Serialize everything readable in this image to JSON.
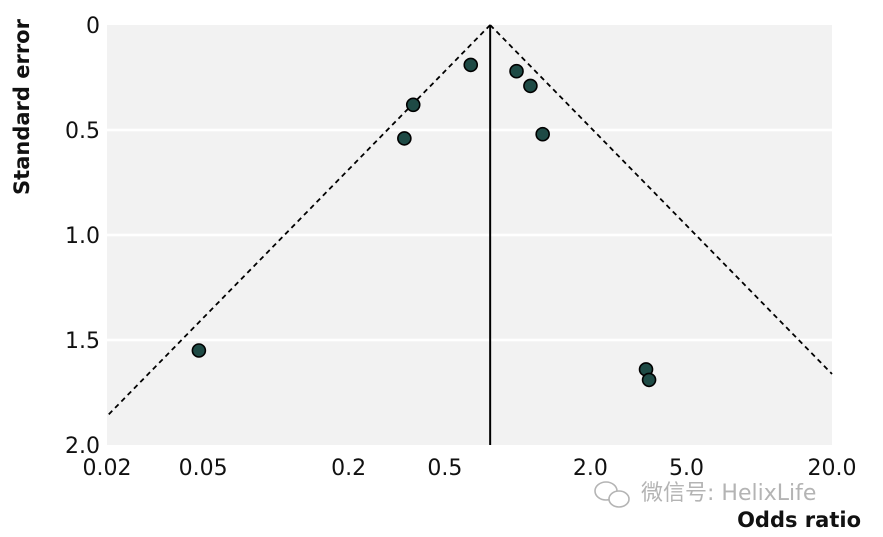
{
  "chart_data": {
    "type": "scatter",
    "title": "",
    "xlabel": "Odds ratio",
    "ylabel": "Standard error",
    "x_scale": "log",
    "y_inverted": true,
    "xlim": [
      0.02,
      20.0
    ],
    "ylim": [
      0,
      2.0
    ],
    "x_ticks": [
      {
        "value": 0.02,
        "label": "0.02"
      },
      {
        "value": 0.05,
        "label": "0.05"
      },
      {
        "value": 0.2,
        "label": "0.2"
      },
      {
        "value": 0.5,
        "label": "0.5"
      },
      {
        "value": 2.0,
        "label": "2.0"
      },
      {
        "value": 5.0,
        "label": "5.0"
      },
      {
        "value": 20.0,
        "label": "20.0"
      }
    ],
    "y_ticks": [
      {
        "value": 0,
        "label": "0"
      },
      {
        "value": 0.5,
        "label": "0.5"
      },
      {
        "value": 1.0,
        "label": "1.0"
      },
      {
        "value": 1.5,
        "label": "1.5"
      },
      {
        "value": 2.0,
        "label": "2.0"
      }
    ],
    "grid": "horizontal",
    "pooled_estimate": 0.77,
    "funnel_limits": "pseudo 95% confidence limits (dashed)",
    "points": [
      {
        "x": 0.048,
        "y": 1.55
      },
      {
        "x": 0.34,
        "y": 0.54
      },
      {
        "x": 0.37,
        "y": 0.38
      },
      {
        "x": 0.64,
        "y": 0.19
      },
      {
        "x": 0.99,
        "y": 0.22
      },
      {
        "x": 1.13,
        "y": 0.29
      },
      {
        "x": 1.27,
        "y": 0.52
      },
      {
        "x": 3.4,
        "y": 1.64
      },
      {
        "x": 3.5,
        "y": 1.69
      }
    ]
  },
  "watermark": {
    "text": "微信号: HelixLife"
  },
  "colors": {
    "plot_bg": "#f2f2f2",
    "grid": "#ffffff",
    "point_fill": "#1e4a45",
    "point_stroke": "#000000",
    "line": "#000000"
  }
}
